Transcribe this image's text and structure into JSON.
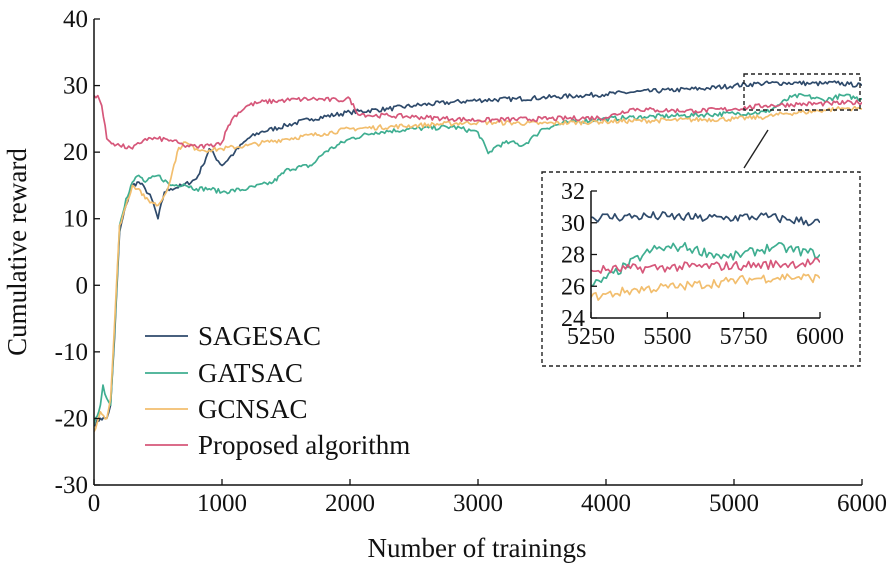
{
  "chart_data": {
    "type": "line",
    "xlabel": "Number of trainings",
    "ylabel": "Cumulative reward",
    "xlim": [
      0,
      6000
    ],
    "ylim": [
      -30,
      40
    ],
    "xticks": [
      0,
      1000,
      2000,
      3000,
      4000,
      5000,
      6000
    ],
    "yticks": [
      -30,
      -20,
      -10,
      0,
      10,
      20,
      30,
      40
    ],
    "legend_placement": "lower-left",
    "grid": false,
    "series": [
      {
        "name": "SAGESAC",
        "color": "#2e4a6b",
        "x": [
          0,
          50,
          100,
          130,
          160,
          200,
          250,
          300,
          350,
          400,
          450,
          500,
          550,
          600,
          700,
          800,
          850,
          900,
          1000,
          1100,
          1200,
          1300,
          1500,
          1700,
          2000,
          2300,
          2500,
          2800,
          3000,
          3300,
          3500,
          3800,
          4000,
          4200,
          4500,
          4800,
          5000,
          5200,
          5400,
          5500,
          5600,
          5700,
          5800,
          5900,
          6000
        ],
        "y": [
          -21,
          -20,
          -20,
          -18,
          -8,
          8,
          12,
          15,
          15.5,
          14.5,
          13,
          10,
          14,
          14.5,
          15,
          16,
          18,
          20.5,
          18,
          20,
          22,
          23,
          24,
          25,
          26,
          26.5,
          27,
          27.5,
          27.8,
          28,
          28.2,
          28.5,
          28.7,
          29,
          29.3,
          29.6,
          30,
          30.3,
          30.4,
          30.4,
          30.3,
          30.3,
          30.4,
          30.2,
          30
        ]
      },
      {
        "name": "GATSAC",
        "color": "#3fae91",
        "x": [
          0,
          50,
          70,
          100,
          130,
          160,
          200,
          250,
          300,
          350,
          400,
          500,
          600,
          700,
          800,
          900,
          1000,
          1200,
          1400,
          1520,
          1700,
          1800,
          2000,
          2200,
          2500,
          2800,
          3000,
          3080,
          3150,
          3250,
          3350,
          3450,
          3500,
          3700,
          4000,
          4300,
          4600,
          5000,
          5250,
          5300,
          5450,
          5550,
          5700,
          5850,
          6000
        ],
        "y": [
          -21,
          -18,
          -15,
          -17,
          -18,
          -7,
          9,
          13,
          15.5,
          16.5,
          15.5,
          16.5,
          15,
          15.2,
          14.5,
          14.5,
          14,
          14.5,
          15.5,
          17.5,
          18,
          20,
          22,
          23,
          23.5,
          23.8,
          23,
          19.8,
          21,
          21.5,
          21,
          22.5,
          23.5,
          24.5,
          25,
          25.3,
          25.5,
          25.8,
          26,
          26.5,
          28.3,
          28.5,
          27.8,
          28.5,
          28
        ]
      },
      {
        "name": "GCNSAC",
        "color": "#f2be6e",
        "x": [
          0,
          50,
          100,
          130,
          160,
          200,
          250,
          300,
          350,
          400,
          450,
          500,
          550,
          600,
          650,
          700,
          800,
          900,
          1000,
          1200,
          1500,
          1800,
          2000,
          2500,
          3000,
          3500,
          4000,
          4500,
          5000,
          5250,
          5400,
          5550,
          5700,
          5800,
          5900,
          6000
        ],
        "y": [
          -22,
          -19,
          -20,
          -17,
          -6,
          9,
          12,
          15,
          14.5,
          13,
          12.5,
          12,
          13.5,
          16,
          20,
          21.5,
          20.5,
          20.3,
          20.5,
          21,
          22,
          22.8,
          23.5,
          24,
          24.5,
          24.3,
          24.6,
          24.8,
          25,
          25.3,
          25.8,
          26,
          26.3,
          26.5,
          26.6,
          26.5
        ]
      },
      {
        "name": "Proposed algorithm",
        "color": "#d6577a",
        "x": [
          0,
          30,
          60,
          100,
          150,
          200,
          300,
          400,
          500,
          600,
          700,
          800,
          900,
          1000,
          1050,
          1100,
          1200,
          1300,
          1500,
          1700,
          1900,
          2000,
          2050,
          2150,
          2300,
          2500,
          2800,
          3000,
          3500,
          4000,
          4200,
          4400,
          4700,
          5000,
          5250,
          5500,
          5750,
          6000
        ],
        "y": [
          28.5,
          28.5,
          27,
          22,
          21.3,
          21,
          20.5,
          22,
          22,
          21.8,
          21,
          20.8,
          21,
          21.5,
          24,
          25.5,
          27,
          27.5,
          27.8,
          28,
          27.8,
          28,
          26,
          25.5,
          25.5,
          25.3,
          25,
          24.8,
          25,
          25.2,
          26.5,
          26.3,
          26.2,
          26.5,
          27,
          27.2,
          27.3,
          27.5
        ]
      }
    ],
    "inset": {
      "xlim": [
        5250,
        6000
      ],
      "ylim": [
        24,
        32
      ],
      "xticks": [
        5250,
        5500,
        5750,
        6000
      ],
      "yticks": [
        24,
        26,
        28,
        30,
        32
      ]
    }
  },
  "legend": {
    "entries": [
      "SAGESAC",
      "GATSAC",
      "GCNSAC",
      "Proposed algorithm"
    ]
  }
}
